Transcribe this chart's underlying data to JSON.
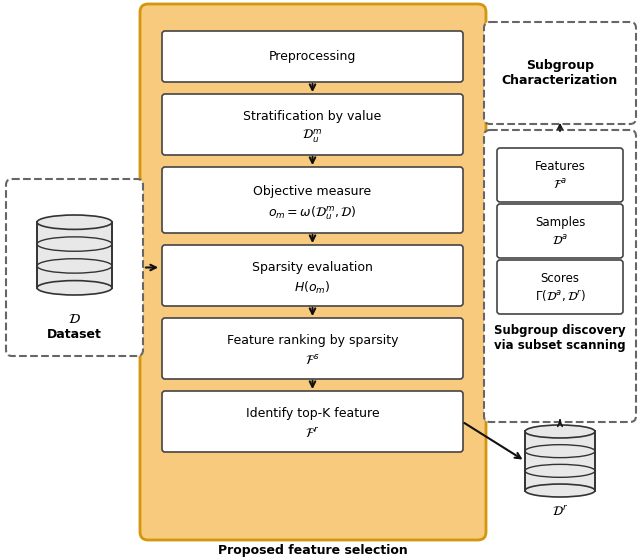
{
  "bg_color": "#ffffff",
  "orange_bg": "#f7ca7e",
  "orange_border": "#d4960a",
  "box_bg": "#ffffff",
  "box_border": "#444444",
  "dashed_border": "#666666",
  "arrow_color": "#111111",
  "text_color": "#000000",
  "main_box_labels": [
    "Preprocessing",
    "Stratification by value",
    "Objective measure",
    "Sparsity evaluation",
    "Feature ranking by sparsity",
    "Identify top-K feature"
  ],
  "main_box_sublabels": [
    "",
    "$\\mathcal{D}_u^{m}$",
    "$o_m = \\omega(\\mathcal{D}_u^m, \\mathcal{D})$",
    "$H(o_m)$",
    "$\\mathcal{F}^s$",
    "$\\mathcal{F}^r$"
  ],
  "proposed_label": "Proposed feature selection",
  "subgroup_char_label": "Subgroup\nCharacterization",
  "subgroup_disc_label": "Subgroup discovery\nvia subset scanning",
  "dataset_label_math": "$\\mathcal{D}$",
  "dataset_label_text": "Dataset",
  "dr_label": "$\\mathcal{D}^r$",
  "right_box_labels": [
    "Features",
    "Samples",
    "Scores"
  ],
  "right_box_sublabels": [
    "$\\mathcal{F}^a$",
    "$\\mathcal{D}^a$",
    "$\\Gamma(\\mathcal{D}^a, \\mathcal{D}^r)$"
  ]
}
